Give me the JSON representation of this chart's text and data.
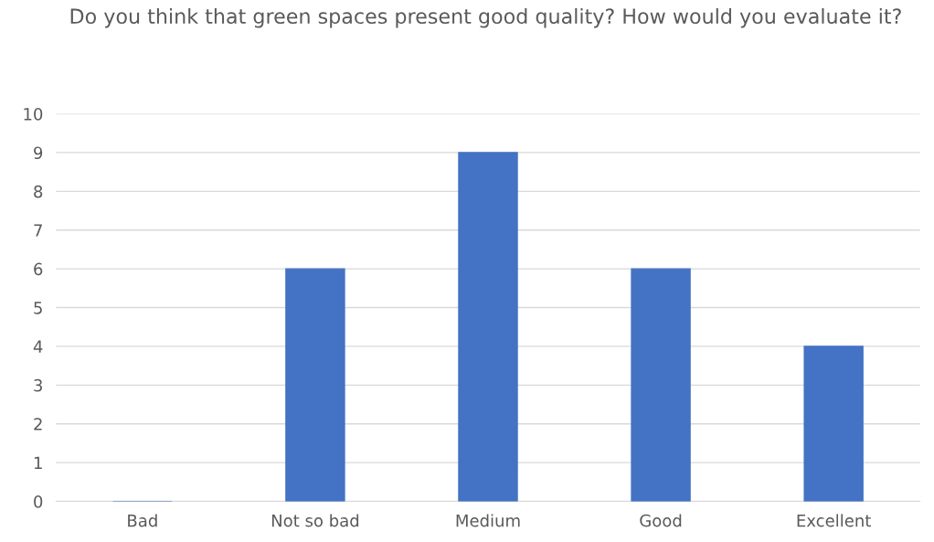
{
  "chart_data": {
    "type": "bar",
    "title": "Do you think that green spaces present good quality? How would you evaluate it?",
    "categories": [
      "Bad",
      "Not so bad",
      "Medium",
      "Good",
      "Excellent"
    ],
    "values": [
      0,
      6,
      9,
      6,
      4
    ],
    "color": "#4472c4",
    "ylim": [
      0,
      10
    ],
    "yticks": [
      0,
      1,
      2,
      3,
      4,
      5,
      6,
      7,
      8,
      9,
      10
    ],
    "grid": "y",
    "legend": false
  }
}
